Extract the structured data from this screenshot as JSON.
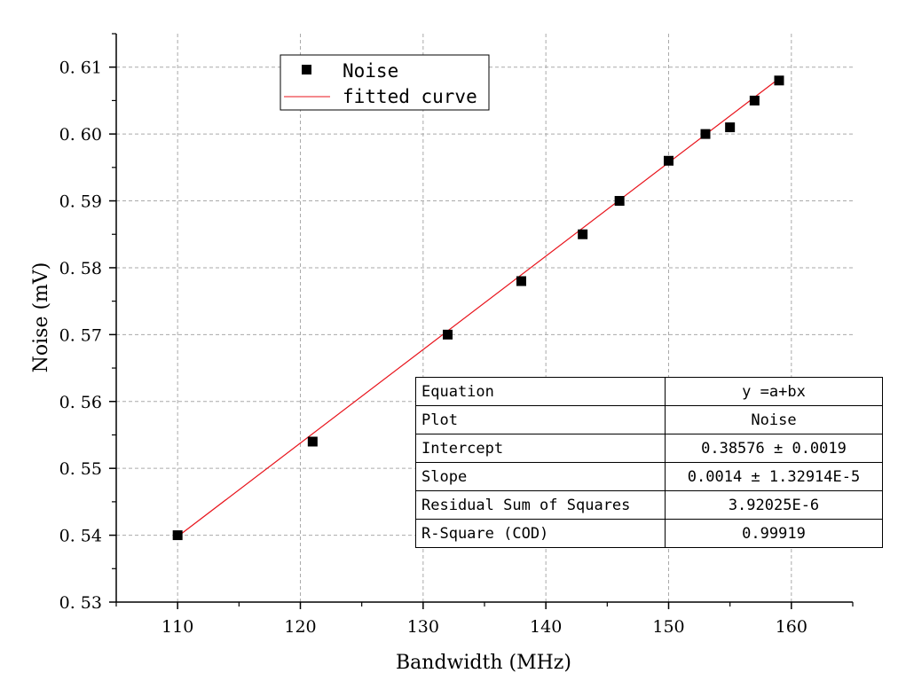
{
  "chart_data": {
    "type": "scatter",
    "xlabel": "Bandwidth (MHz)",
    "ylabel": "Noise (mV)",
    "xlim": [
      105,
      165
    ],
    "ylim": [
      0.53,
      0.615
    ],
    "x_ticks": [
      "110",
      "120",
      "130",
      "140",
      "150",
      "160"
    ],
    "y_ticks": [
      "0.53",
      "0.54",
      "0.55",
      "0.56",
      "0.57",
      "0.58",
      "0.59",
      "0.60",
      "0.61"
    ],
    "grid": true,
    "legend_position": "top-left",
    "series": [
      {
        "name": "Noise",
        "kind": "scatter",
        "marker": "square",
        "color": "#000000",
        "x": [
          110,
          121,
          132,
          138,
          143,
          146,
          150,
          153,
          155,
          157,
          159
        ],
        "y": [
          0.54,
          0.554,
          0.57,
          0.578,
          0.585,
          0.59,
          0.596,
          0.6,
          0.601,
          0.605,
          0.608
        ]
      },
      {
        "name": "fitted curve",
        "kind": "line",
        "color": "#e8131b",
        "x": [
          110,
          159
        ],
        "y": [
          0.5398,
          0.6083
        ]
      }
    ],
    "fit_table": [
      {
        "key": "Equation",
        "value": "y =a+bx"
      },
      {
        "key": "Plot",
        "value": "Noise"
      },
      {
        "key": "Intercept",
        "value": "0.38576 ± 0.0019"
      },
      {
        "key": "Slope",
        "value": "0.0014 ± 1.32914E-5"
      },
      {
        "key": "Residual Sum of Squares",
        "value": "3.92025E-6"
      },
      {
        "key": "R-Square (COD)",
        "value": "0.99919"
      }
    ]
  }
}
